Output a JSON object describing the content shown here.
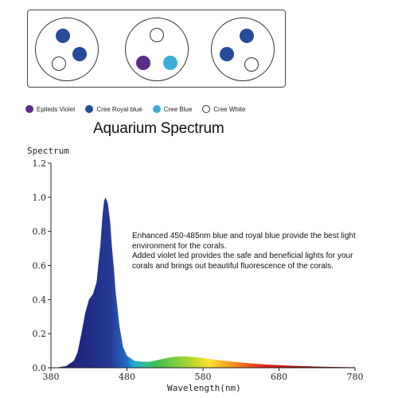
{
  "legend": [
    {
      "name": "Epileds Violet",
      "color": "#5b2d86",
      "filled": true
    },
    {
      "name": "Cree Royal blue",
      "color": "#264b9a",
      "filled": true
    },
    {
      "name": "Cree Blue",
      "color": "#3eaed8",
      "filled": true
    },
    {
      "name": "Cree White",
      "color": "#ffffff",
      "filled": false
    }
  ],
  "modules": [
    {
      "leds": [
        "Cree Royal blue",
        "Cree Royal blue",
        "Cree White"
      ]
    },
    {
      "leds": [
        "Cree White",
        "Epileds Violet",
        "Cree Blue"
      ]
    },
    {
      "leds": [
        "Cree Royal blue",
        "Cree Royal blue",
        "Cree White"
      ]
    }
  ],
  "annotation": {
    "line1": "Enhanced 450-485nm blue and royal blue provide the best light environment for the corals.",
    "line2": "Added violet led provides the safe and beneficial lights for your corals and brings out beautiful fluorescence of the corals."
  },
  "chart_data": {
    "type": "area",
    "title": "Aquarium Spectrum",
    "xlabel": "Wavelength(nm)",
    "ylabel": "Spectrum",
    "xlim": [
      380,
      780
    ],
    "ylim": [
      0,
      1.2
    ],
    "xticks": [
      380,
      480,
      580,
      680,
      780
    ],
    "yticks": [
      "0.0",
      "0.2",
      "0.4",
      "0.6",
      "0.8",
      "1.0",
      "1.2"
    ],
    "grid": false,
    "series": [
      {
        "x": [
          380,
          390,
          400,
          410,
          415,
          420,
          425,
          430,
          435,
          440,
          445,
          448,
          450,
          452,
          455,
          458,
          460,
          463,
          465,
          470,
          475,
          480,
          490,
          500,
          510,
          520,
          530,
          540,
          550,
          560,
          570,
          580,
          590,
          600,
          620,
          640,
          660,
          680,
          700,
          720,
          740,
          760,
          780
        ],
        "y": [
          0.0,
          0.003,
          0.01,
          0.04,
          0.09,
          0.2,
          0.32,
          0.4,
          0.43,
          0.5,
          0.72,
          0.9,
          0.98,
          1.0,
          0.96,
          0.85,
          0.72,
          0.57,
          0.45,
          0.25,
          0.12,
          0.07,
          0.04,
          0.035,
          0.035,
          0.045,
          0.055,
          0.063,
          0.067,
          0.066,
          0.062,
          0.057,
          0.05,
          0.045,
          0.035,
          0.027,
          0.02,
          0.015,
          0.011,
          0.008,
          0.006,
          0.004,
          0.003
        ]
      }
    ]
  }
}
